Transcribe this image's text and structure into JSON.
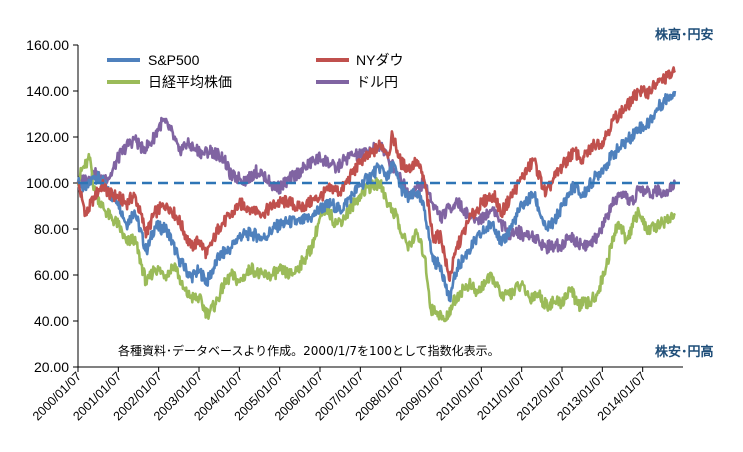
{
  "chart_data": {
    "type": "line",
    "title": "",
    "xlabel": "",
    "ylabel": "",
    "ylim": [
      20,
      160
    ],
    "yticks": [
      "20.00",
      "40.00",
      "60.00",
      "80.00",
      "100.00",
      "120.00",
      "140.00",
      "160.00"
    ],
    "xtick_labels": [
      "2000/01/07",
      "2001/01/07",
      "2002/01/07",
      "2003/01/07",
      "2004/01/07",
      "2005/01/07",
      "2006/01/07",
      "2007/01/07",
      "2008/01/07",
      "2009/01/07",
      "2010/01/07",
      "2011/01/07",
      "2012/01/07",
      "2013/01/07",
      "2014/01/07"
    ],
    "x_range_years": [
      2000.0,
      2015.0
    ],
    "reference_line": {
      "y": 100,
      "style": "dashed"
    },
    "corner_top": "株高･円安",
    "corner_bottom": "株安･円高",
    "note": "各種資料･データベースより作成。2000/1/7を100として指数化表示。",
    "grid": false,
    "series": [
      {
        "name": "S&P500",
        "color": "#4f81bd",
        "points": [
          [
            2000.0,
            100
          ],
          [
            2000.2,
            97
          ],
          [
            2000.4,
            103
          ],
          [
            2000.6,
            101
          ],
          [
            2000.8,
            95
          ],
          [
            2001.0,
            92
          ],
          [
            2001.2,
            82
          ],
          [
            2001.4,
            88
          ],
          [
            2001.7,
            70
          ],
          [
            2001.9,
            81
          ],
          [
            2002.2,
            80
          ],
          [
            2002.5,
            67
          ],
          [
            2002.8,
            59
          ],
          [
            2003.0,
            62
          ],
          [
            2003.2,
            57
          ],
          [
            2003.5,
            68
          ],
          [
            2003.8,
            72
          ],
          [
            2004.0,
            77
          ],
          [
            2004.3,
            78
          ],
          [
            2004.6,
            76
          ],
          [
            2004.9,
            81
          ],
          [
            2005.2,
            83
          ],
          [
            2005.5,
            83
          ],
          [
            2005.8,
            85
          ],
          [
            2006.0,
            89
          ],
          [
            2006.3,
            91
          ],
          [
            2006.5,
            88
          ],
          [
            2006.8,
            95
          ],
          [
            2007.0,
            99
          ],
          [
            2007.3,
            104
          ],
          [
            2007.5,
            107
          ],
          [
            2007.7,
            102
          ],
          [
            2007.8,
            109
          ],
          [
            2008.0,
            98
          ],
          [
            2008.2,
            93
          ],
          [
            2008.4,
            96
          ],
          [
            2008.6,
            88
          ],
          [
            2008.8,
            66
          ],
          [
            2009.0,
            64
          ],
          [
            2009.2,
            49
          ],
          [
            2009.4,
            63
          ],
          [
            2009.7,
            71
          ],
          [
            2010.0,
            78
          ],
          [
            2010.3,
            83
          ],
          [
            2010.5,
            73
          ],
          [
            2010.8,
            83
          ],
          [
            2011.0,
            90
          ],
          [
            2011.3,
            95
          ],
          [
            2011.6,
            80
          ],
          [
            2011.8,
            83
          ],
          [
            2012.0,
            90
          ],
          [
            2012.3,
            99
          ],
          [
            2012.5,
            94
          ],
          [
            2012.8,
            102
          ],
          [
            2013.0,
            106
          ],
          [
            2013.3,
            113
          ],
          [
            2013.6,
            118
          ],
          [
            2013.9,
            124
          ],
          [
            2014.1,
            125
          ],
          [
            2014.4,
            133
          ],
          [
            2014.6,
            137
          ],
          [
            2014.8,
            140
          ]
        ]
      },
      {
        "name": "NYダウ",
        "color": "#c0504d",
        "points": [
          [
            2000.0,
            100
          ],
          [
            2000.1,
            93
          ],
          [
            2000.2,
            86
          ],
          [
            2000.4,
            94
          ],
          [
            2000.6,
            99
          ],
          [
            2000.8,
            95
          ],
          [
            2001.0,
            94
          ],
          [
            2001.2,
            91
          ],
          [
            2001.4,
            95
          ],
          [
            2001.7,
            78
          ],
          [
            2001.9,
            87
          ],
          [
            2002.2,
            91
          ],
          [
            2002.5,
            84
          ],
          [
            2002.8,
            72
          ],
          [
            2003.0,
            75
          ],
          [
            2003.2,
            69
          ],
          [
            2003.5,
            81
          ],
          [
            2003.8,
            86
          ],
          [
            2004.0,
            91
          ],
          [
            2004.3,
            89
          ],
          [
            2004.6,
            87
          ],
          [
            2004.9,
            91
          ],
          [
            2005.2,
            92
          ],
          [
            2005.5,
            89
          ],
          [
            2005.8,
            92
          ],
          [
            2006.0,
            94
          ],
          [
            2006.3,
            98
          ],
          [
            2006.5,
            96
          ],
          [
            2006.8,
            104
          ],
          [
            2007.0,
            109
          ],
          [
            2007.3,
            113
          ],
          [
            2007.5,
            117
          ],
          [
            2007.7,
            113
          ],
          [
            2007.8,
            121
          ],
          [
            2008.0,
            109
          ],
          [
            2008.2,
            106
          ],
          [
            2008.4,
            110
          ],
          [
            2008.6,
            100
          ],
          [
            2008.8,
            76
          ],
          [
            2009.0,
            77
          ],
          [
            2009.2,
            58
          ],
          [
            2009.4,
            72
          ],
          [
            2009.7,
            84
          ],
          [
            2010.0,
            91
          ],
          [
            2010.3,
            95
          ],
          [
            2010.5,
            87
          ],
          [
            2010.8,
            96
          ],
          [
            2011.0,
            102
          ],
          [
            2011.3,
            110
          ],
          [
            2011.6,
            95
          ],
          [
            2011.8,
            102
          ],
          [
            2012.0,
            107
          ],
          [
            2012.3,
            114
          ],
          [
            2012.5,
            110
          ],
          [
            2012.8,
            117
          ],
          [
            2013.0,
            118
          ],
          [
            2013.3,
            128
          ],
          [
            2013.6,
            133
          ],
          [
            2013.9,
            140
          ],
          [
            2014.1,
            139
          ],
          [
            2014.4,
            144
          ],
          [
            2014.6,
            146
          ],
          [
            2014.8,
            148
          ]
        ]
      },
      {
        "name": "日経平均株価",
        "color": "#9bbb59",
        "points": [
          [
            2000.0,
            100
          ],
          [
            2000.1,
            106
          ],
          [
            2000.2,
            108
          ],
          [
            2000.3,
            111
          ],
          [
            2000.4,
            97
          ],
          [
            2000.6,
            90
          ],
          [
            2000.8,
            85
          ],
          [
            2001.0,
            82
          ],
          [
            2001.2,
            74
          ],
          [
            2001.4,
            76
          ],
          [
            2001.7,
            56
          ],
          [
            2001.9,
            63
          ],
          [
            2002.2,
            60
          ],
          [
            2002.4,
            65
          ],
          [
            2002.6,
            54
          ],
          [
            2002.8,
            50
          ],
          [
            2003.0,
            50
          ],
          [
            2003.2,
            43
          ],
          [
            2003.4,
            47
          ],
          [
            2003.6,
            55
          ],
          [
            2003.8,
            60
          ],
          [
            2004.0,
            57
          ],
          [
            2004.3,
            63
          ],
          [
            2004.5,
            60
          ],
          [
            2004.8,
            60
          ],
          [
            2005.0,
            62
          ],
          [
            2005.3,
            60
          ],
          [
            2005.5,
            64
          ],
          [
            2005.8,
            72
          ],
          [
            2006.0,
            85
          ],
          [
            2006.2,
            88
          ],
          [
            2006.4,
            82
          ],
          [
            2006.6,
            85
          ],
          [
            2006.8,
            90
          ],
          [
            2007.0,
            95
          ],
          [
            2007.2,
            98
          ],
          [
            2007.5,
            100
          ],
          [
            2007.7,
            90
          ],
          [
            2007.9,
            86
          ],
          [
            2008.0,
            78
          ],
          [
            2008.2,
            73
          ],
          [
            2008.4,
            78
          ],
          [
            2008.6,
            68
          ],
          [
            2008.75,
            45
          ],
          [
            2008.9,
            44
          ],
          [
            2009.1,
            40
          ],
          [
            2009.3,
            48
          ],
          [
            2009.5,
            53
          ],
          [
            2009.7,
            56
          ],
          [
            2009.9,
            52
          ],
          [
            2010.1,
            57
          ],
          [
            2010.3,
            59
          ],
          [
            2010.5,
            50
          ],
          [
            2010.8,
            53
          ],
          [
            2011.0,
            56
          ],
          [
            2011.2,
            50
          ],
          [
            2011.4,
            52
          ],
          [
            2011.6,
            47
          ],
          [
            2011.8,
            48
          ],
          [
            2012.0,
            48
          ],
          [
            2012.2,
            54
          ],
          [
            2012.4,
            47
          ],
          [
            2012.7,
            48
          ],
          [
            2012.9,
            53
          ],
          [
            2013.1,
            64
          ],
          [
            2013.3,
            78
          ],
          [
            2013.4,
            83
          ],
          [
            2013.6,
            75
          ],
          [
            2013.9,
            88
          ],
          [
            2014.1,
            79
          ],
          [
            2014.3,
            81
          ],
          [
            2014.6,
            84
          ],
          [
            2014.8,
            86
          ]
        ]
      },
      {
        "name": "ドル円",
        "color": "#8064a2",
        "points": [
          [
            2000.0,
            100
          ],
          [
            2000.2,
            102
          ],
          [
            2000.4,
            104
          ],
          [
            2000.6,
            102
          ],
          [
            2000.8,
            103
          ],
          [
            2001.0,
            111
          ],
          [
            2001.2,
            116
          ],
          [
            2001.4,
            119
          ],
          [
            2001.6,
            115
          ],
          [
            2001.8,
            117
          ],
          [
            2002.0,
            124
          ],
          [
            2002.1,
            127
          ],
          [
            2002.3,
            123
          ],
          [
            2002.5,
            114
          ],
          [
            2002.7,
            117
          ],
          [
            2002.9,
            115
          ],
          [
            2003.1,
            113
          ],
          [
            2003.3,
            114
          ],
          [
            2003.6,
            111
          ],
          [
            2003.8,
            103
          ],
          [
            2004.0,
            102
          ],
          [
            2004.2,
            101
          ],
          [
            2004.4,
            105
          ],
          [
            2004.6,
            104
          ],
          [
            2004.8,
            99
          ],
          [
            2005.0,
            98
          ],
          [
            2005.2,
            101
          ],
          [
            2005.5,
            105
          ],
          [
            2005.8,
            109
          ],
          [
            2006.0,
            111
          ],
          [
            2006.2,
            109
          ],
          [
            2006.4,
            106
          ],
          [
            2006.6,
            110
          ],
          [
            2006.8,
            112
          ],
          [
            2007.0,
            112
          ],
          [
            2007.2,
            114
          ],
          [
            2007.4,
            115
          ],
          [
            2007.5,
            117
          ],
          [
            2007.7,
            110
          ],
          [
            2007.9,
            105
          ],
          [
            2008.0,
            102
          ],
          [
            2008.2,
            95
          ],
          [
            2008.4,
            98
          ],
          [
            2008.6,
            100
          ],
          [
            2008.8,
            91
          ],
          [
            2009.0,
            85
          ],
          [
            2009.2,
            89
          ],
          [
            2009.4,
            92
          ],
          [
            2009.6,
            87
          ],
          [
            2009.9,
            84
          ],
          [
            2010.1,
            86
          ],
          [
            2010.3,
            89
          ],
          [
            2010.5,
            82
          ],
          [
            2010.7,
            78
          ],
          [
            2010.9,
            79
          ],
          [
            2011.1,
            77
          ],
          [
            2011.3,
            77
          ],
          [
            2011.6,
            72
          ],
          [
            2011.8,
            73
          ],
          [
            2012.0,
            73
          ],
          [
            2012.2,
            77
          ],
          [
            2012.4,
            74
          ],
          [
            2012.7,
            73
          ],
          [
            2012.9,
            77
          ],
          [
            2013.1,
            85
          ],
          [
            2013.3,
            92
          ],
          [
            2013.5,
            94
          ],
          [
            2013.8,
            92
          ],
          [
            2013.9,
            98
          ],
          [
            2014.1,
            96
          ],
          [
            2014.3,
            96
          ],
          [
            2014.6,
            97
          ],
          [
            2014.8,
            100
          ]
        ]
      }
    ]
  }
}
